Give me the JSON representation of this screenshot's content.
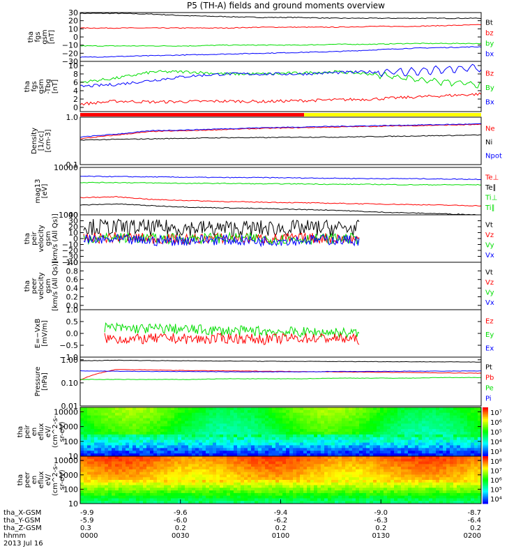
{
  "title": "P5 (TH-A) fields and ground moments overview",
  "colors": {
    "black": "#000000",
    "red": "#ff0000",
    "green": "#00dd00",
    "blue": "#0000ff",
    "yellow": "#ffff00"
  },
  "mode_bar": {
    "segments": [
      {
        "start": "0000",
        "end": "0107",
        "color": "red"
      },
      {
        "start": "0107",
        "end": "0200",
        "color": "yellow"
      }
    ]
  },
  "chart_data": [
    {
      "id": "fgs",
      "type": "line",
      "ylabel": [
        "tha",
        "fgs",
        "gsm",
        "[nT]"
      ],
      "ylim": [
        -30,
        30
      ],
      "ticks": [
        "30",
        "20",
        "10",
        "0",
        "−10",
        "−20",
        "−30"
      ],
      "legend": [
        {
          "label": "Bt",
          "color": "black"
        },
        {
          "label": "bz",
          "color": "red"
        },
        {
          "label": "by",
          "color": "green"
        },
        {
          "label": "bx",
          "color": "blue"
        }
      ],
      "series": [
        {
          "name": "Bt",
          "color": "black",
          "values": [
            29,
            29,
            28,
            26,
            25,
            24,
            24,
            23,
            23,
            23,
            23,
            23
          ]
        },
        {
          "name": "bz",
          "color": "red",
          "values": [
            11,
            11,
            11,
            11,
            11,
            12,
            12,
            12,
            13,
            13,
            14,
            15
          ]
        },
        {
          "name": "by",
          "color": "green",
          "values": [
            -11,
            -11,
            -11,
            -11,
            -10,
            -10,
            -10,
            -9,
            -9,
            -8,
            -8,
            -8
          ]
        },
        {
          "name": "bx",
          "color": "blue",
          "values": [
            -25,
            -24,
            -23,
            -22,
            -21,
            -20,
            -19,
            -18,
            -16,
            -14,
            -13,
            -12
          ]
        }
      ]
    },
    {
      "id": "fgs_tbg",
      "type": "line",
      "ylabel": [
        "tha",
        "fgs",
        "gsm",
        "-Tbg",
        "[nT]"
      ],
      "ylim": [
        -1,
        11
      ],
      "ticks": [
        "10",
        "8",
        "6",
        "4",
        "2",
        "0"
      ],
      "legend": [
        {
          "label": "Bz",
          "color": "red"
        },
        {
          "label": "By",
          "color": "green"
        },
        {
          "label": "Bx",
          "color": "blue"
        }
      ],
      "series": [
        {
          "name": "Bz",
          "color": "red",
          "values": [
            0.8,
            1.5,
            1.3,
            1.4,
            1.5,
            1.4,
            1.6,
            1.8,
            2.0,
            2.4,
            2.8,
            3.2
          ]
        },
        {
          "name": "By",
          "color": "green",
          "values": [
            6,
            7,
            8.5,
            8.5,
            8,
            8,
            8.2,
            8.5,
            8,
            7,
            6,
            5.5
          ]
        },
        {
          "name": "Bx",
          "color": "blue",
          "values": [
            5,
            5.5,
            6.5,
            7.5,
            8,
            8,
            8,
            8.3,
            8.5,
            8.5,
            9,
            9.5
          ]
        }
      ]
    },
    {
      "id": "density",
      "type": "line",
      "ylabel": [
        "Density",
        "[1/cc]",
        "[cm-3]"
      ],
      "log": true,
      "ylim": [
        0.1,
        1.0
      ],
      "ticks": [
        "1.0",
        "0.1"
      ],
      "legend": [
        {
          "label": "Ne",
          "color": "red"
        },
        {
          "label": "Ni",
          "color": "black"
        },
        {
          "label": "Npot",
          "color": "blue"
        }
      ],
      "series": [
        {
          "name": "Ne",
          "color": "red",
          "values": [
            0.35,
            0.42,
            0.5,
            0.52,
            0.55,
            0.58,
            0.6,
            0.62,
            0.64,
            0.66,
            0.68,
            0.7
          ]
        },
        {
          "name": "Ni",
          "color": "black",
          "values": [
            0.33,
            0.34,
            0.35,
            0.36,
            0.37,
            0.37,
            0.38,
            0.38,
            0.39,
            0.4,
            0.41,
            0.42
          ]
        },
        {
          "name": "Npot",
          "color": "blue",
          "values": [
            0.38,
            0.44,
            0.52,
            0.54,
            0.57,
            0.6,
            0.62,
            0.64,
            0.66,
            0.68,
            0.7,
            0.72
          ]
        }
      ]
    },
    {
      "id": "temp",
      "type": "line",
      "ylabel": [
        "mag13",
        "[eV]"
      ],
      "log": true,
      "ylim": [
        1000,
        10000
      ],
      "ticks": [
        "10000",
        "1000"
      ],
      "legend": [
        {
          "label": "Te⊥",
          "color": "red"
        },
        {
          "label": "Te∥",
          "color": "black"
        },
        {
          "label": "Ti⊥",
          "color": "green"
        },
        {
          "label": "Ti∥",
          "color": "green"
        }
      ],
      "series": [
        {
          "name": "Ti",
          "color": "blue",
          "values": [
            6500,
            6400,
            6300,
            6200,
            6100,
            6100,
            6000,
            5900,
            5800,
            5800,
            5700,
            5600
          ]
        },
        {
          "name": "Ti∥",
          "color": "green",
          "values": [
            4800,
            4800,
            4700,
            4600,
            4600,
            4500,
            4500,
            4400,
            4400,
            4300,
            4300,
            4300
          ]
        },
        {
          "name": "Te⊥",
          "color": "red",
          "values": [
            2300,
            2400,
            2100,
            2000,
            1900,
            1850,
            1800,
            1750,
            1700,
            1650,
            1600,
            1550
          ]
        },
        {
          "name": "Te∥",
          "color": "black",
          "values": [
            1600,
            1700,
            1550,
            1450,
            1400,
            1350,
            1300,
            1250,
            1150,
            1100,
            1050,
            1000
          ]
        }
      ]
    },
    {
      "id": "peir",
      "type": "line",
      "ylabel": [
        "tha",
        "peir",
        "velocity",
        "gsm",
        "[km/s (All Qs)]"
      ],
      "ylim": [
        -40,
        40
      ],
      "ticks": [
        "40",
        "30",
        "20",
        "10",
        "0",
        "−10",
        "−20",
        "−30",
        "−40"
      ],
      "legend": [
        {
          "label": "Vt",
          "color": "black"
        },
        {
          "label": "Vz",
          "color": "red"
        },
        {
          "label": "Vy",
          "color": "green"
        },
        {
          "label": "Vx",
          "color": "blue"
        }
      ],
      "series": [
        {
          "name": "Vt",
          "color": "black",
          "values": [
            20,
            19,
            18,
            18,
            17,
            17,
            17,
            18,
            17
          ]
        },
        {
          "name": "Vz",
          "color": "red",
          "values": [
            0,
            2,
            0,
            -1,
            1,
            0,
            0,
            1,
            -1
          ]
        },
        {
          "name": "Vy",
          "color": "green",
          "values": [
            0,
            1,
            0,
            0,
            1,
            0,
            -1,
            0,
            0
          ]
        },
        {
          "name": "Vx",
          "color": "blue",
          "values": [
            -3,
            -2,
            -4,
            -3,
            -2,
            -4,
            -3,
            -2,
            -3
          ]
        }
      ]
    },
    {
      "id": "peer",
      "type": "line",
      "ylabel": [
        "tha",
        "peer",
        "velocity",
        "gsm",
        "[km/s (All Qs)]"
      ],
      "ylim": [
        -0.1,
        1.0
      ],
      "ticks": [
        "1.0",
        "0.8",
        "0.6",
        "0.4",
        "0.2",
        "0.0"
      ],
      "legend": [
        {
          "label": "Vt",
          "color": "black"
        },
        {
          "label": "Vz",
          "color": "red"
        },
        {
          "label": "Vy",
          "color": "green"
        },
        {
          "label": "Vx",
          "color": "blue"
        }
      ],
      "series": []
    },
    {
      "id": "efield",
      "type": "line",
      "ylabel": [
        "E=−VxB",
        "[mV/m]"
      ],
      "ylim": [
        -1,
        1
      ],
      "ticks": [
        "1.0",
        "0.5",
        "0.0",
        "−0.5",
        "−1.0"
      ],
      "legend": [
        {
          "label": "Ez",
          "color": "red"
        },
        {
          "label": "Ey",
          "color": "green"
        },
        {
          "label": "Ex",
          "color": "blue"
        }
      ],
      "series": [
        {
          "name": "Ey",
          "color": "green",
          "values": [
            0.25,
            0.2,
            0.2,
            0.15,
            0.1,
            0.1,
            0.05,
            0.05,
            0.0
          ]
        },
        {
          "name": "Ez",
          "color": "red",
          "values": [
            -0.2,
            -0.25,
            -0.2,
            -0.25,
            -0.2,
            -0.25,
            -0.2,
            -0.2,
            -0.25
          ]
        }
      ]
    },
    {
      "id": "pressure",
      "type": "line",
      "ylabel": [
        "Pressure",
        "[nPa]"
      ],
      "log": true,
      "ylim": [
        0.01,
        1.3
      ],
      "ticks": [
        "1.00",
        "0.10",
        "0.01"
      ],
      "legend": [
        {
          "label": "Pt",
          "color": "black"
        },
        {
          "label": "Pb",
          "color": "red"
        },
        {
          "label": "Pe",
          "color": "green"
        },
        {
          "label": "Pi",
          "color": "blue"
        }
      ],
      "series": [
        {
          "name": "Pt",
          "color": "black",
          "values": [
            0.9,
            0.95,
            0.92,
            0.9,
            0.88,
            0.86,
            0.85,
            0.84,
            0.83,
            0.82,
            0.81,
            0.8
          ]
        },
        {
          "name": "Pb",
          "color": "red",
          "values": [
            0.13,
            0.38,
            0.36,
            0.34,
            0.33,
            0.32,
            0.31,
            0.3,
            0.29,
            0.28,
            0.27,
            0.26
          ]
        },
        {
          "name": "Pi",
          "color": "blue",
          "values": [
            0.33,
            0.32,
            0.31,
            0.31,
            0.3,
            0.3,
            0.3,
            0.31,
            0.31,
            0.32,
            0.32,
            0.33
          ]
        },
        {
          "name": "Pe",
          "color": "green",
          "values": [
            0.14,
            0.14,
            0.14,
            0.14,
            0.15,
            0.15,
            0.15,
            0.16,
            0.16,
            0.16,
            0.17,
            0.17
          ]
        }
      ]
    },
    {
      "id": "peir_spec",
      "type": "heatmap",
      "ylabel": [
        "tha",
        "peir",
        "en",
        "eflux",
        "eV/",
        "(cm^2-s-",
        "sr-eV)"
      ],
      "log": true,
      "ylim": [
        10,
        20000
      ],
      "ticks": [
        "10000",
        "1000",
        "100",
        "10"
      ],
      "colorbar_ticks": [
        "10⁷",
        "10⁶",
        "10⁵",
        "10⁴",
        "10³"
      ]
    },
    {
      "id": "peer_spec",
      "type": "heatmap",
      "ylabel": [
        "tha",
        "peer",
        "en",
        "eflux",
        "eV/",
        "(cm^2-s-",
        "sr-eV)"
      ],
      "log": true,
      "ylim": [
        10,
        20000
      ],
      "ticks": [
        "10000",
        "1000",
        "100",
        "10"
      ],
      "colorbar_ticks": [
        "10⁸",
        "10⁷",
        "10⁶",
        "10⁵",
        "10⁴"
      ]
    }
  ],
  "x_axis": {
    "rows": [
      {
        "label": "tha_X-GSM",
        "values": [
          "-9.9",
          "-9.6",
          "-9.4",
          "-9.0",
          "-8.7"
        ]
      },
      {
        "label": "tha_Y-GSM",
        "values": [
          "-5.9",
          "-6.0",
          "-6.2",
          "-6.3",
          "-6.4"
        ]
      },
      {
        "label": "tha_Z-GSM",
        "values": [
          "0.3",
          "0.2",
          "0.2",
          "0.2",
          "0.2"
        ]
      },
      {
        "label": "hhmm",
        "values": [
          "0000",
          "0030",
          "0100",
          "0130",
          "0200"
        ]
      }
    ],
    "date": "2013 Jul 16"
  }
}
